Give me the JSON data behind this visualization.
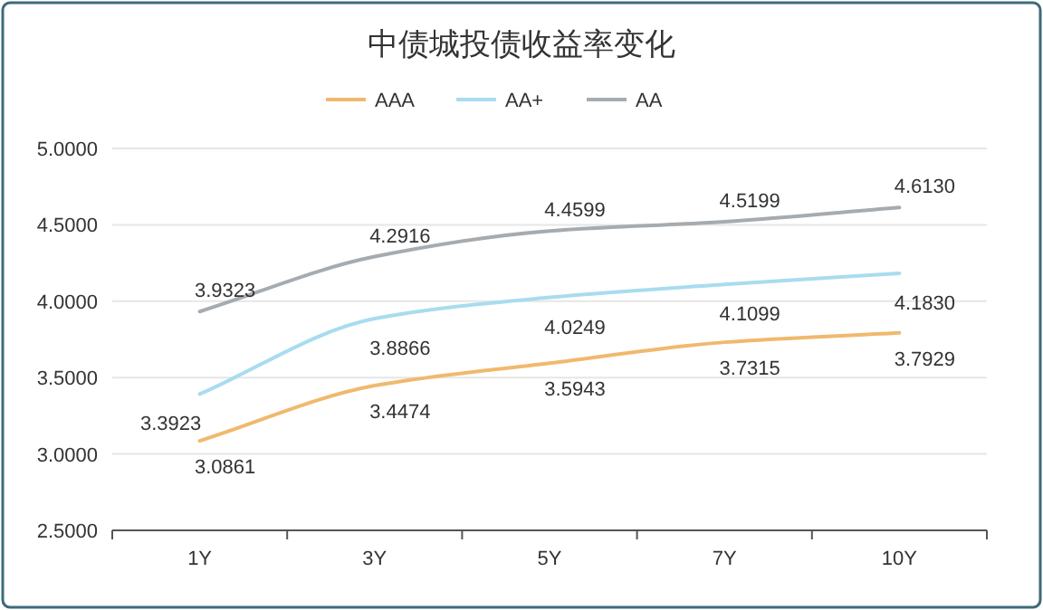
{
  "chart_data": {
    "type": "line",
    "title": "中债城投债收益率变化",
    "categories": [
      "1Y",
      "3Y",
      "5Y",
      "7Y",
      "10Y"
    ],
    "series": [
      {
        "name": "AAA",
        "color": "#f0b96e",
        "values": [
          3.0861,
          3.4474,
          3.5943,
          3.7315,
          3.7929
        ],
        "value_labels": [
          "3.0861",
          "3.4474",
          "3.5943",
          "3.7315",
          "3.7929"
        ]
      },
      {
        "name": "AA+",
        "color": "#a8dcef",
        "values": [
          3.3923,
          3.8866,
          4.0249,
          4.1099,
          4.183
        ],
        "value_labels": [
          "3.3923",
          "3.8866",
          "4.0249",
          "4.1099",
          "4.1830"
        ]
      },
      {
        "name": "AA",
        "color": "#a6abb0",
        "values": [
          3.9323,
          4.2916,
          4.4599,
          4.5199,
          4.613
        ],
        "value_labels": [
          "3.9323",
          "4.2916",
          "4.4599",
          "4.5199",
          "4.6130"
        ]
      }
    ],
    "ylim": [
      2.5,
      5
    ],
    "yticks": [
      {
        "value": 2.5,
        "label": "2.5000"
      },
      {
        "value": 3,
        "label": "3.0000"
      },
      {
        "value": 3.5,
        "label": "3.5000"
      },
      {
        "value": 4,
        "label": "4.0000"
      },
      {
        "value": 4.5,
        "label": "4.5000"
      },
      {
        "value": 5,
        "label": "5.0000"
      }
    ],
    "grid": "y",
    "legend": "top",
    "marker": "none",
    "line_style": "solid"
  }
}
